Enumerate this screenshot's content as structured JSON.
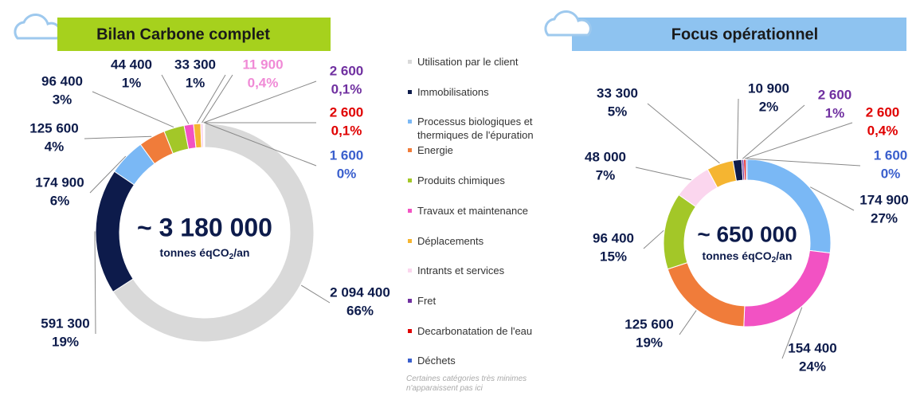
{
  "chart_data": [
    {
      "type": "donut",
      "title": "Bilan Carbone complet",
      "center_label": "~ 3 180 000",
      "center_unit": [
        "tonnes éqCO",
        "2",
        "/an"
      ],
      "categories": [
        "Utilisation par le client",
        "Immobilisations",
        "Processus biologiques et thermiques de l'épuration",
        "Energie",
        "Produits chimiques",
        "Travaux et maintenance",
        "Déplacements",
        "Intrants et services",
        "Fret",
        "Decarbonatation de l'eau",
        "Déchets"
      ],
      "values": [
        2094400,
        591300,
        174900,
        125600,
        96400,
        44400,
        33300,
        11900,
        2600,
        2600,
        1600
      ],
      "value_labels": [
        "2 094 400",
        "591 300",
        "174 900",
        "125 600",
        "96 400",
        "44 400",
        "33 300",
        "11 900",
        "2 600",
        "2 600",
        "1 600"
      ],
      "percents": [
        66,
        19,
        6,
        4,
        3,
        1,
        1,
        0.4,
        0.1,
        0.1,
        0
      ],
      "percent_labels": [
        "66%",
        "19%",
        "6%",
        "4%",
        "3%",
        "1%",
        "1%",
        "0,4%",
        "0,1%",
        "0,1%",
        "0%"
      ],
      "colors": [
        "#d9d9d9",
        "#0d1b4b",
        "#7ab8f5",
        "#f07c3a",
        "#a3c728",
        "#f252c3",
        "#f5b531",
        "#fbd6ee",
        "#7030a0",
        "#e00000",
        "#3a5fcd"
      ],
      "label_colors": [
        "#0d1b4b",
        "#0d1b4b",
        "#0d1b4b",
        "#0d1b4b",
        "#0d1b4b",
        "#0d1b4b",
        "#0d1b4b",
        "#f08ad6",
        "#7030a0",
        "#e00000",
        "#3a5fcd"
      ]
    },
    {
      "type": "donut",
      "title": "Focus opérationnel",
      "center_label": "~ 650 000",
      "center_unit": [
        "tonnes éqCO",
        "2",
        "/an"
      ],
      "values": [
        174900,
        154400,
        125600,
        96400,
        48000,
        33300,
        10900,
        2600,
        2600,
        1600
      ],
      "value_labels": [
        "174 900",
        "154 400",
        "125 600",
        "96 400",
        "48 000",
        "33 300",
        "10 900",
        "2 600",
        "2 600",
        "1 600"
      ],
      "percents": [
        27,
        24,
        19,
        15,
        7,
        5,
        2,
        1,
        0.4,
        0
      ],
      "percent_labels": [
        "27%",
        "24%",
        "19%",
        "15%",
        "7%",
        "5%",
        "2%",
        "1%",
        "0,4%",
        "0%"
      ],
      "colors": [
        "#7ab8f5",
        "#f252c3",
        "#f07c3a",
        "#a3c728",
        "#fbd6ee",
        "#f5b531",
        "#0d1b4b",
        "#7030a0",
        "#e00000",
        "#3a5fcd"
      ],
      "label_colors": [
        "#0d1b4b",
        "#0d1b4b",
        "#0d1b4b",
        "#0d1b4b",
        "#0d1b4b",
        "#0d1b4b",
        "#0d1b4b",
        "#7030a0",
        "#e00000",
        "#3a5fcd"
      ]
    }
  ],
  "note": "Certaines catégories très minimes n'apparaissent pas ici"
}
